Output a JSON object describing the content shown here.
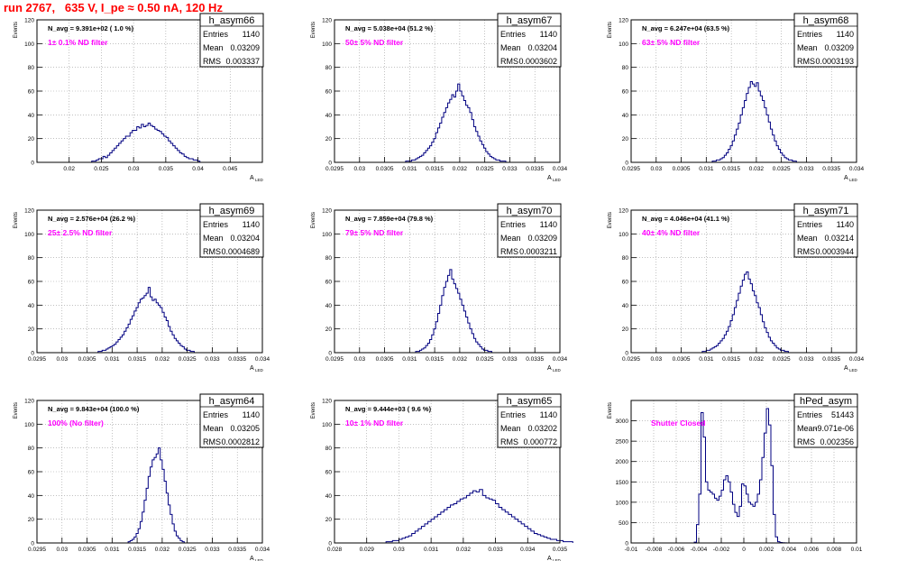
{
  "title": "run 2767,   635 V, I_pe ≈ 0.50 nA, 120 Hz",
  "colors": {
    "histogram": "#000080",
    "annotation_primary": "#000000",
    "filter_note": "#ff00ff",
    "title": "#ff0000",
    "grid": "#9a9a9a"
  },
  "stat_labels": {
    "entries": "Entries",
    "mean": "Mean",
    "rms": "RMS"
  },
  "chart_data": [
    {
      "type": "histogram",
      "name": "h_asym66",
      "entries": "1140",
      "mean": "0.03209",
      "rms": "0.003337",
      "n_avg": "N_avg = 9.391e+02 ( 1.0 %)",
      "filter": "1± 0.1% ND filter",
      "xlabel": "A",
      "xlabel_sub": "LED",
      "ylabel": "Events",
      "xlim": [
        0.015,
        0.05
      ],
      "ylim": [
        0,
        120
      ],
      "xticks": [
        0.02,
        0.025,
        0.03,
        0.035,
        0.04,
        0.045
      ],
      "xtick_labels": [
        "0.02",
        "0.025",
        "0.03",
        "0.035",
        "0.04",
        "0.045"
      ],
      "yticks": [
        0,
        20,
        40,
        60,
        80,
        100,
        120
      ],
      "ytick_labels": [
        "0",
        "20",
        "40",
        "60",
        "80",
        "100",
        "120"
      ],
      "xgrid": [
        0.02,
        0.025,
        0.03,
        0.035,
        0.04,
        0.045,
        0.05
      ],
      "ygrid": [
        20,
        40,
        60,
        80,
        100,
        120
      ],
      "bins": {
        "start": 0.0235,
        "width": 0.00035,
        "values": [
          1,
          1,
          2,
          3,
          3,
          5,
          4,
          6,
          8,
          10,
          12,
          14,
          16,
          18,
          20,
          22,
          22,
          25,
          27,
          27,
          30,
          29,
          32,
          30,
          31,
          33,
          31,
          30,
          28,
          27,
          26,
          24,
          22,
          21,
          18,
          16,
          14,
          12,
          10,
          8,
          7,
          5,
          4,
          3,
          3,
          2,
          2,
          1
        ]
      }
    },
    {
      "type": "histogram",
      "name": "h_asym67",
      "entries": "1140",
      "mean": "0.03204",
      "rms": "0.0003602",
      "n_avg": "N_avg = 5.038e+04 (51.2 %)",
      "filter": "50± 5% ND filter",
      "xlabel": "A",
      "xlabel_sub": "LED",
      "ylabel": "Events",
      "xlim": [
        0.0295,
        0.034
      ],
      "ylim": [
        0,
        120
      ],
      "xticks": [
        0.0295,
        0.03,
        0.0305,
        0.031,
        0.0315,
        0.032,
        0.0325,
        0.033,
        0.0335,
        0.034
      ],
      "xtick_labels": [
        "0.0295",
        "0.03",
        "0.0305",
        "0.031",
        "0.0315",
        "0.032",
        "0.0325",
        "0.033",
        "0.0335",
        "0.034"
      ],
      "yticks": [
        0,
        20,
        40,
        60,
        80,
        100,
        120
      ],
      "ytick_labels": [
        "0",
        "20",
        "40",
        "60",
        "80",
        "100",
        "120"
      ],
      "xgrid": [
        0.03,
        0.0305,
        0.031,
        0.0315,
        0.032,
        0.0325,
        0.033,
        0.0335
      ],
      "ygrid": [
        20,
        40,
        60,
        80,
        100,
        120
      ],
      "bins": {
        "start": 0.03092,
        "width": 4e-05,
        "values": [
          1,
          1,
          1,
          2,
          2,
          3,
          4,
          5,
          6,
          8,
          10,
          12,
          14,
          17,
          20,
          25,
          29,
          33,
          38,
          42,
          46,
          50,
          53,
          57,
          55,
          60,
          66,
          60,
          56,
          52,
          48,
          46,
          42,
          36,
          30,
          26,
          22,
          18,
          15,
          12,
          9,
          7,
          5,
          4,
          3,
          2,
          2,
          1,
          1,
          1
        ]
      }
    },
    {
      "type": "histogram",
      "name": "h_asym68",
      "entries": "1140",
      "mean": "0.03209",
      "rms": "0.0003193",
      "n_avg": "N_avg = 6.247e+04 (63.5 %)",
      "filter": "63± 5% ND filter",
      "xlabel": "A",
      "xlabel_sub": "LED",
      "ylabel": "Events",
      "xlim": [
        0.0295,
        0.034
      ],
      "ylim": [
        0,
        120
      ],
      "xticks": [
        0.0295,
        0.03,
        0.0305,
        0.031,
        0.0315,
        0.032,
        0.0325,
        0.033,
        0.0335,
        0.034
      ],
      "xtick_labels": [
        "0.0295",
        "0.03",
        "0.0305",
        "0.031",
        "0.0315",
        "0.032",
        "0.0325",
        "0.033",
        "0.0335",
        "0.034"
      ],
      "yticks": [
        0,
        20,
        40,
        60,
        80,
        100,
        120
      ],
      "ytick_labels": [
        "0",
        "20",
        "40",
        "60",
        "80",
        "100",
        "120"
      ],
      "xgrid": [
        0.03,
        0.0305,
        0.031,
        0.0315,
        0.032,
        0.0325,
        0.033,
        0.0335
      ],
      "ygrid": [
        20,
        40,
        60,
        80,
        100,
        120
      ],
      "bins": {
        "start": 0.03112,
        "width": 4e-05,
        "values": [
          1,
          1,
          2,
          2,
          3,
          4,
          6,
          8,
          11,
          14,
          18,
          23,
          28,
          33,
          40,
          46,
          52,
          58,
          63,
          68,
          66,
          64,
          67,
          60,
          56,
          52,
          46,
          40,
          34,
          28,
          23,
          18,
          14,
          11,
          8,
          6,
          4,
          3,
          2,
          2,
          1,
          1
        ]
      }
    },
    {
      "type": "histogram",
      "name": "h_asym69",
      "entries": "1140",
      "mean": "0.03204",
      "rms": "0.0004689",
      "n_avg": "N_avg = 2.576e+04 (26.2 %)",
      "filter": "25± 2.5% ND filter",
      "xlabel": "A",
      "xlabel_sub": "LED",
      "ylabel": "Events",
      "xlim": [
        0.0295,
        0.034
      ],
      "ylim": [
        0,
        120
      ],
      "xticks": [
        0.0295,
        0.03,
        0.0305,
        0.031,
        0.0315,
        0.032,
        0.0325,
        0.033,
        0.0335,
        0.034
      ],
      "xtick_labels": [
        "0.0295",
        "0.03",
        "0.0305",
        "0.031",
        "0.0315",
        "0.032",
        "0.0325",
        "0.033",
        "0.0335",
        "0.034"
      ],
      "yticks": [
        0,
        20,
        40,
        60,
        80,
        100,
        120
      ],
      "ytick_labels": [
        "0",
        "20",
        "40",
        "60",
        "80",
        "100",
        "120"
      ],
      "xgrid": [
        0.03,
        0.0305,
        0.031,
        0.0315,
        0.032,
        0.0325,
        0.033,
        0.0335
      ],
      "ygrid": [
        20,
        40,
        60,
        80,
        100,
        120
      ],
      "bins": {
        "start": 0.03072,
        "width": 4e-05,
        "values": [
          1,
          1,
          2,
          2,
          3,
          4,
          5,
          6,
          7,
          9,
          11,
          13,
          15,
          18,
          21,
          24,
          28,
          31,
          35,
          38,
          42,
          45,
          46,
          48,
          50,
          55,
          47,
          44,
          45,
          42,
          40,
          38,
          34,
          30,
          27,
          22,
          18,
          15,
          12,
          10,
          8,
          6,
          5,
          3,
          2,
          2,
          1,
          1
        ]
      }
    },
    {
      "type": "histogram",
      "name": "h_asym70",
      "entries": "1140",
      "mean": "0.03209",
      "rms": "0.0003211",
      "n_avg": "N_avg = 7.859e+04 (79.8 %)",
      "filter": "79± 5% ND filter",
      "xlabel": "A",
      "xlabel_sub": "LED",
      "ylabel": "Events",
      "xlim": [
        0.0295,
        0.034
      ],
      "ylim": [
        0,
        120
      ],
      "xticks": [
        0.0295,
        0.03,
        0.0305,
        0.031,
        0.0315,
        0.032,
        0.0325,
        0.033,
        0.0335,
        0.034
      ],
      "xtick_labels": [
        "0.0295",
        "0.03",
        "0.0305",
        "0.031",
        "0.0315",
        "0.032",
        "0.0325",
        "0.033",
        "0.0335",
        "0.034"
      ],
      "yticks": [
        0,
        20,
        40,
        60,
        80,
        100,
        120
      ],
      "ytick_labels": [
        "0",
        "20",
        "40",
        "60",
        "80",
        "100",
        "120"
      ],
      "xgrid": [
        0.03,
        0.0305,
        0.031,
        0.0315,
        0.032,
        0.0325,
        0.033,
        0.0335
      ],
      "ygrid": [
        20,
        40,
        60,
        80,
        100,
        120
      ],
      "bins": {
        "start": 0.03112,
        "width": 4e-05,
        "values": [
          1,
          1,
          2,
          3,
          4,
          6,
          8,
          11,
          15,
          20,
          26,
          33,
          40,
          48,
          55,
          60,
          65,
          70,
          62,
          58,
          54,
          50,
          45,
          40,
          35,
          30,
          25,
          20,
          16,
          12,
          9,
          7,
          5,
          3,
          2,
          2,
          1,
          1
        ]
      }
    },
    {
      "type": "histogram",
      "name": "h_asym71",
      "entries": "1140",
      "mean": "0.03214",
      "rms": "0.0003944",
      "n_avg": "N_avg = 4.046e+04 (41.1 %)",
      "filter": "40± 4% ND filter",
      "xlabel": "A",
      "xlabel_sub": "LED",
      "ylabel": "Events",
      "xlim": [
        0.0295,
        0.034
      ],
      "ylim": [
        0,
        120
      ],
      "xticks": [
        0.0295,
        0.03,
        0.0305,
        0.031,
        0.0315,
        0.032,
        0.0325,
        0.033,
        0.0335,
        0.034
      ],
      "xtick_labels": [
        "0.0295",
        "0.03",
        "0.0305",
        "0.031",
        "0.0315",
        "0.032",
        "0.0325",
        "0.033",
        "0.0335",
        "0.034"
      ],
      "yticks": [
        0,
        20,
        40,
        60,
        80,
        100,
        120
      ],
      "ytick_labels": [
        "0",
        "20",
        "40",
        "60",
        "80",
        "100",
        "120"
      ],
      "xgrid": [
        0.03,
        0.0305,
        0.031,
        0.0315,
        0.032,
        0.0325,
        0.033,
        0.0335
      ],
      "ygrid": [
        20,
        40,
        60,
        80,
        100,
        120
      ],
      "bins": {
        "start": 0.03092,
        "width": 4e-05,
        "values": [
          1,
          1,
          2,
          2,
          3,
          4,
          5,
          6,
          8,
          10,
          12,
          15,
          18,
          22,
          27,
          32,
          38,
          44,
          50,
          56,
          61,
          66,
          68,
          62,
          58,
          52,
          48,
          42,
          38,
          32,
          26,
          21,
          17,
          13,
          10,
          8,
          6,
          4,
          3,
          2,
          2,
          1,
          1
        ]
      }
    },
    {
      "type": "histogram",
      "name": "h_asym64",
      "entries": "1140",
      "mean": "0.03205",
      "rms": "0.0002812",
      "n_avg": "N_avg = 9.843e+04 (100.0 %)",
      "filter": "100% (No filter)",
      "xlabel": "A",
      "xlabel_sub": "LED",
      "ylabel": "Events",
      "xlim": [
        0.0295,
        0.034
      ],
      "ylim": [
        0,
        120
      ],
      "xticks": [
        0.0295,
        0.03,
        0.0305,
        0.031,
        0.0315,
        0.032,
        0.0325,
        0.033,
        0.0335,
        0.034
      ],
      "xtick_labels": [
        "0.0295",
        "0.03",
        "0.0305",
        "0.031",
        "0.0315",
        "0.032",
        "0.0325",
        "0.033",
        "0.0335",
        "0.034"
      ],
      "yticks": [
        0,
        20,
        40,
        60,
        80,
        100,
        120
      ],
      "ytick_labels": [
        "0",
        "20",
        "40",
        "60",
        "80",
        "100",
        "120"
      ],
      "xgrid": [
        0.03,
        0.0305,
        0.031,
        0.0315,
        0.032,
        0.0325,
        0.033,
        0.0335
      ],
      "ygrid": [
        20,
        40,
        60,
        80,
        100,
        120
      ],
      "bins": {
        "start": 0.03132,
        "width": 4e-05,
        "values": [
          1,
          2,
          3,
          5,
          8,
          12,
          18,
          26,
          36,
          46,
          56,
          64,
          70,
          72,
          75,
          80,
          70,
          62,
          52,
          42,
          32,
          24,
          16,
          10,
          6,
          4,
          2,
          1
        ]
      }
    },
    {
      "type": "histogram",
      "name": "h_asym65",
      "entries": "1140",
      "mean": "0.03202",
      "rms": "0.000772",
      "n_avg": "N_avg = 9.444e+03 ( 9.6 %)",
      "filter": "10± 1% ND filter",
      "xlabel": "A",
      "xlabel_sub": "LED",
      "ylabel": "Events",
      "xlim": [
        0.028,
        0.035
      ],
      "ylim": [
        0,
        120
      ],
      "xticks": [
        0.028,
        0.029,
        0.03,
        0.031,
        0.032,
        0.033,
        0.034,
        0.035
      ],
      "xtick_labels": [
        "0.028",
        "0.029",
        "0.03",
        "0.031",
        "0.032",
        "0.033",
        "0.034",
        "0.035"
      ],
      "yticks": [
        0,
        20,
        40,
        60,
        80,
        100,
        120
      ],
      "ytick_labels": [
        "0",
        "20",
        "40",
        "60",
        "80",
        "100",
        "120"
      ],
      "xgrid": [
        0.029,
        0.03,
        0.031,
        0.032,
        0.033,
        0.034
      ],
      "ygrid": [
        20,
        40,
        60,
        80,
        100,
        120
      ],
      "bins": {
        "start": 0.0296,
        "width": 0.0001,
        "values": [
          1,
          1,
          2,
          2,
          3,
          4,
          5,
          6,
          8,
          10,
          12,
          14,
          16,
          18,
          20,
          22,
          24,
          26,
          28,
          30,
          32,
          33,
          35,
          37,
          38,
          40,
          42,
          44,
          43,
          45,
          40,
          38,
          37,
          36,
          33,
          30,
          28,
          26,
          24,
          22,
          20,
          18,
          16,
          14,
          12,
          10,
          8,
          7,
          6,
          5,
          4,
          3,
          3,
          2,
          2,
          1,
          1,
          1
        ]
      }
    },
    {
      "type": "histogram",
      "name": "hPed_asym",
      "entries": "51443",
      "mean": "-9.071e-06",
      "rms": "0.002356",
      "n_avg": "",
      "filter": "Shutter Closed",
      "xlabel": "",
      "xlabel_sub": "",
      "ylabel": "Events",
      "xlim": [
        -0.01,
        0.01
      ],
      "ylim": [
        0,
        3500
      ],
      "xticks": [
        -0.01,
        -0.008,
        -0.006,
        -0.004,
        -0.002,
        0,
        0.002,
        0.004,
        0.006,
        0.008,
        0.01
      ],
      "xtick_labels": [
        "-0.01",
        "-0.008",
        "-0.006",
        "-0.004",
        "-0.002",
        "0",
        "0.002",
        "0.004",
        "0.006",
        "0.008",
        "0.01"
      ],
      "yticks": [
        0,
        500,
        1000,
        1500,
        2000,
        2500,
        3000
      ],
      "ytick_labels": [
        "0",
        "500",
        "1000",
        "1500",
        "2000",
        "2500",
        "3000"
      ],
      "xgrid": [
        -0.008,
        -0.006,
        -0.004,
        -0.002,
        0,
        0.002,
        0.004,
        0.006,
        0.008
      ],
      "ygrid": [
        500,
        1000,
        1500,
        2000,
        2500,
        3000
      ],
      "bins": {
        "start": -0.0044,
        "width": 0.0002,
        "values": [
          20,
          450,
          1200,
          3200,
          2600,
          1500,
          1300,
          1250,
          1200,
          1100,
          1050,
          1150,
          1300,
          1550,
          1650,
          1500,
          1250,
          950,
          750,
          650,
          900,
          1450,
          1400,
          1200,
          1000,
          950,
          900,
          1000,
          1200,
          1550,
          2100,
          2700,
          3300,
          2900,
          1900,
          700,
          150,
          30,
          10,
          5,
          2,
          1,
          0,
          0,
          0
        ]
      }
    }
  ]
}
